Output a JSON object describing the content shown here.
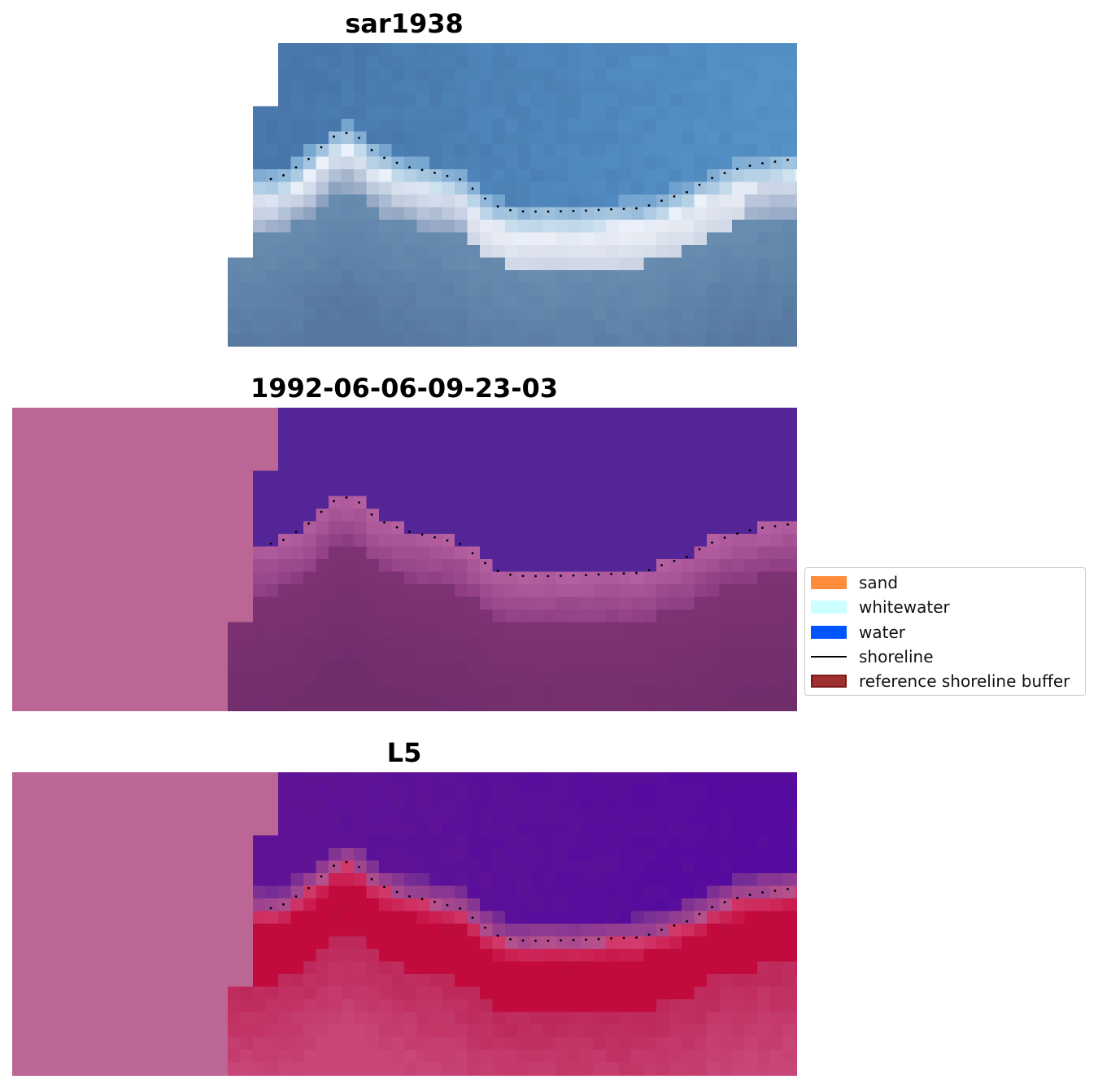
{
  "panels": [
    {
      "title": "sar1938",
      "style": "rgb"
    },
    {
      "title": "1992-06-06-09-23-03",
      "style": "classified"
    },
    {
      "title": "L5",
      "style": "index"
    }
  ],
  "legend": {
    "items": [
      {
        "label": "sand",
        "kind": "patch",
        "color": "#ff8c3a"
      },
      {
        "label": "whitewater",
        "kind": "patch",
        "color": "#ccffff"
      },
      {
        "label": "water",
        "kind": "patch",
        "color": "#0055ff"
      },
      {
        "label": "shoreline",
        "kind": "line",
        "color": "#000000"
      },
      {
        "label": "reference shoreline buffer",
        "kind": "patch",
        "color": "#a0302f",
        "edge": "#7a1a1a"
      }
    ]
  },
  "colors": {
    "nodata_mask": "#bb6694",
    "water_class": "#532596",
    "shoreline": "#000000"
  }
}
